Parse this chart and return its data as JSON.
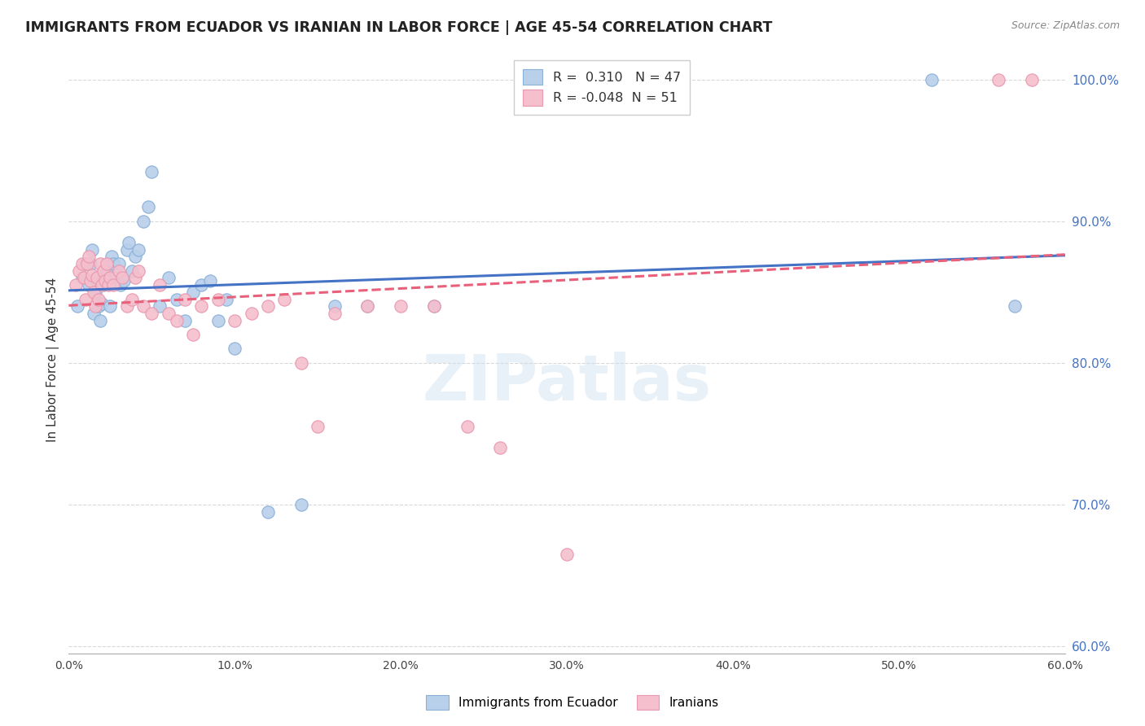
{
  "title": "IMMIGRANTS FROM ECUADOR VS IRANIAN IN LABOR FORCE | AGE 45-54 CORRELATION CHART",
  "source": "Source: ZipAtlas.com",
  "ylabel": "In Labor Force | Age 45-54",
  "xlim": [
    0.0,
    0.6
  ],
  "ylim": [
    0.595,
    1.01
  ],
  "xticks": [
    0.0,
    0.1,
    0.2,
    0.3,
    0.4,
    0.5,
    0.6
  ],
  "yticks_right": [
    0.6,
    0.7,
    0.8,
    0.9,
    1.0
  ],
  "ecuador_color": "#b8d0ea",
  "iran_color": "#f5bfcd",
  "ecuador_edge": "#8ab0d8",
  "iran_edge": "#e898b0",
  "trend_ecuador_color": "#4472c4",
  "trend_iran_color": "#e8607a",
  "legend_label_ecuador": "Immigrants from Ecuador",
  "legend_label_iran": "Iranians",
  "R_ecuador": 0.31,
  "N_ecuador": 47,
  "R_iran": -0.048,
  "N_iran": 51,
  "watermark": "ZIPatlas",
  "ecuador_x": [
    0.005,
    0.008,
    0.01,
    0.012,
    0.013,
    0.014,
    0.015,
    0.016,
    0.017,
    0.018,
    0.019,
    0.02,
    0.021,
    0.022,
    0.023,
    0.025,
    0.026,
    0.027,
    0.028,
    0.03,
    0.031,
    0.033,
    0.035,
    0.036,
    0.038,
    0.04,
    0.042,
    0.045,
    0.048,
    0.05,
    0.055,
    0.06,
    0.065,
    0.07,
    0.075,
    0.08,
    0.085,
    0.09,
    0.095,
    0.1,
    0.12,
    0.14,
    0.16,
    0.18,
    0.22,
    0.52,
    0.57
  ],
  "ecuador_y": [
    0.84,
    0.86,
    0.87,
    0.855,
    0.87,
    0.88,
    0.835,
    0.85,
    0.858,
    0.84,
    0.83,
    0.842,
    0.855,
    0.86,
    0.865,
    0.84,
    0.875,
    0.87,
    0.86,
    0.87,
    0.855,
    0.858,
    0.88,
    0.885,
    0.865,
    0.875,
    0.88,
    0.9,
    0.91,
    0.935,
    0.84,
    0.86,
    0.845,
    0.83,
    0.85,
    0.855,
    0.858,
    0.83,
    0.845,
    0.81,
    0.695,
    0.7,
    0.84,
    0.84,
    0.84,
    1.0,
    0.84
  ],
  "iran_x": [
    0.004,
    0.006,
    0.008,
    0.009,
    0.01,
    0.011,
    0.012,
    0.013,
    0.014,
    0.015,
    0.016,
    0.017,
    0.018,
    0.019,
    0.02,
    0.021,
    0.022,
    0.023,
    0.024,
    0.025,
    0.027,
    0.03,
    0.032,
    0.035,
    0.038,
    0.04,
    0.042,
    0.045,
    0.05,
    0.055,
    0.06,
    0.065,
    0.07,
    0.075,
    0.08,
    0.09,
    0.1,
    0.11,
    0.12,
    0.13,
    0.14,
    0.15,
    0.16,
    0.18,
    0.2,
    0.22,
    0.24,
    0.26,
    0.3,
    0.56,
    0.58
  ],
  "iran_y": [
    0.855,
    0.865,
    0.87,
    0.86,
    0.845,
    0.87,
    0.875,
    0.858,
    0.862,
    0.85,
    0.84,
    0.86,
    0.845,
    0.87,
    0.855,
    0.865,
    0.858,
    0.87,
    0.855,
    0.86,
    0.855,
    0.865,
    0.86,
    0.84,
    0.845,
    0.86,
    0.865,
    0.84,
    0.835,
    0.855,
    0.835,
    0.83,
    0.845,
    0.82,
    0.84,
    0.845,
    0.83,
    0.835,
    0.84,
    0.845,
    0.8,
    0.755,
    0.835,
    0.84,
    0.84,
    0.84,
    0.755,
    0.74,
    0.665,
    1.0,
    1.0
  ],
  "bg_color": "#ffffff",
  "grid_color": "#d8d8d8",
  "title_fontsize": 12.5,
  "axis_label_fontsize": 11,
  "tick_fontsize": 10,
  "marker_size": 11,
  "trend_linewidth": 2.2
}
